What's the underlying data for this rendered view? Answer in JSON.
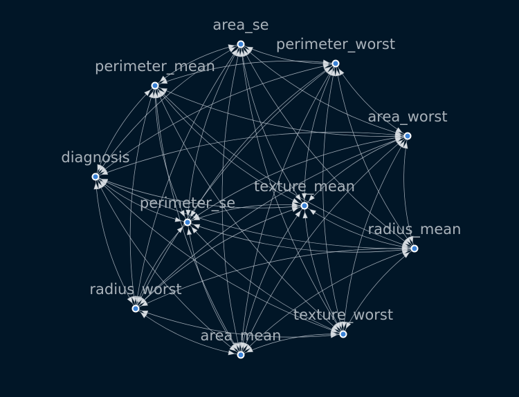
{
  "graph": {
    "colors": {
      "background": "#011627",
      "node": "#3b82d6",
      "edge": "#c8d0d8",
      "label": "#a9b2ba"
    },
    "nodes": [
      {
        "id": "area_se"
      },
      {
        "id": "perimeter_worst"
      },
      {
        "id": "perimeter_mean"
      },
      {
        "id": "area_worst"
      },
      {
        "id": "diagnosis"
      },
      {
        "id": "texture_mean"
      },
      {
        "id": "perimeter_se"
      },
      {
        "id": "radius_mean"
      },
      {
        "id": "radius_worst"
      },
      {
        "id": "texture_worst"
      },
      {
        "id": "area_mean"
      }
    ]
  }
}
